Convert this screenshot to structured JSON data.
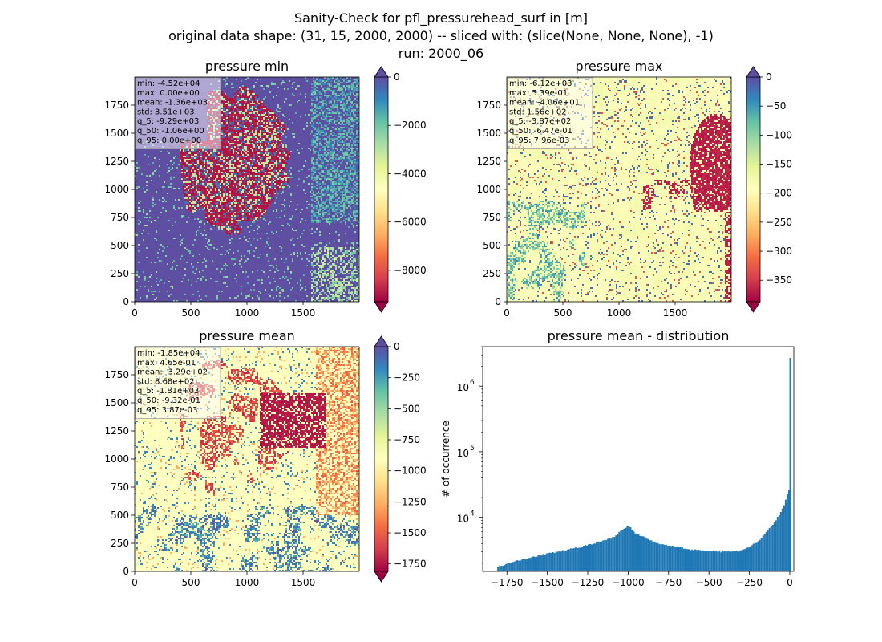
{
  "suptitle": {
    "line1": "Sanity-Check for pfl_pressurehead_surf in [m]",
    "line2": "original data shape: (31, 15, 2000, 2000) -- sliced with: (slice(None, None, None), -1)",
    "line3": "run: 2000_06"
  },
  "colors": {
    "spectral": [
      "#9e0142",
      "#d53e4f",
      "#f46d43",
      "#fdae61",
      "#fee08b",
      "#ffffbf",
      "#e6f598",
      "#abdda4",
      "#66c2a5",
      "#3288bd",
      "#5e4fa2"
    ],
    "histogram": "#1f77b4"
  },
  "chart_data": [
    {
      "type": "heatmap",
      "title": "pressure min",
      "colormap": "Spectral",
      "xlim": [
        0,
        2000
      ],
      "ylim": [
        0,
        2000
      ],
      "x_ticks": [
        "0",
        "500",
        "1000",
        "1500"
      ],
      "y_ticks": [
        "0",
        "250",
        "500",
        "750",
        "1000",
        "1250",
        "1500",
        "1750"
      ],
      "colorbar": {
        "range": [
          -9300,
          0
        ],
        "ticks": [
          0,
          -2000,
          -4000,
          -6000,
          -8000
        ],
        "tick_labels": [
          "0",
          "−2000",
          "−4000",
          "−6000",
          "−8000"
        ],
        "extend": "both"
      },
      "stats": [
        "min: -4.52e+04",
        "max: 0.00e+00",
        "mean: -1.36e+03",
        "std: 3.51e+03",
        "q_5: -9.29e+03",
        "q_50: -1.06e+00",
        "q_95: 0.00e+00"
      ]
    },
    {
      "type": "heatmap",
      "title": "pressure max",
      "colormap": "Spectral",
      "xlim": [
        0,
        2000
      ],
      "ylim": [
        0,
        2000
      ],
      "x_ticks": [
        "0",
        "500",
        "1000",
        "1500"
      ],
      "y_ticks": [
        "0",
        "250",
        "500",
        "750",
        "1000",
        "1250",
        "1500",
        "1750"
      ],
      "colorbar": {
        "range": [
          -387,
          0
        ],
        "ticks": [
          0,
          -50,
          -100,
          -150,
          -200,
          -250,
          -300,
          -350
        ],
        "tick_labels": [
          "0",
          "−50",
          "−100",
          "−150",
          "−200",
          "−250",
          "−300",
          "−350"
        ],
        "extend": "both"
      },
      "stats": [
        "min: -6.12e+03",
        "max: 5.39e-01",
        "mean: -4.06e+01",
        "std: 1.56e+02",
        "q_5: -3.87e+02",
        "q_50: -6.47e-01",
        "q_95: 7.96e-03"
      ]
    },
    {
      "type": "heatmap",
      "title": "pressure mean",
      "colormap": "Spectral",
      "xlim": [
        0,
        2000
      ],
      "ylim": [
        0,
        2000
      ],
      "x_ticks": [
        "0",
        "500",
        "1000",
        "1500"
      ],
      "y_ticks": [
        "0",
        "250",
        "500",
        "750",
        "1000",
        "1250",
        "1500",
        "1750"
      ],
      "colorbar": {
        "range": [
          -1810,
          0
        ],
        "ticks": [
          0,
          -250,
          -500,
          -750,
          -1000,
          -1250,
          -1500,
          -1750
        ],
        "tick_labels": [
          "0",
          "−250",
          "−500",
          "−750",
          "−1000",
          "−1250",
          "−1500",
          "−1750"
        ],
        "extend": "both"
      },
      "stats": [
        "min: -1.85e+04",
        "max: 4.65e-01",
        "mean: -3.29e+02",
        "std: 8.68e+02",
        "q_5: -1.81e+03",
        "q_50: -9.32e-01",
        "q_95: 3.87e-03"
      ]
    },
    {
      "type": "bar",
      "title": "pressure mean - distribution",
      "ylabel": "# of occurrence",
      "y_scale": "log",
      "xlim": [
        -1900,
        25
      ],
      "ylim": [
        1500,
        4000000
      ],
      "x_ticks": [
        -1750,
        -1500,
        -1250,
        -1000,
        -750,
        -500,
        -250,
        0
      ],
      "x_tick_labels": [
        "−1750",
        "−1500",
        "−1250",
        "−1000",
        "−750",
        "−500",
        "−250",
        "0"
      ],
      "y_ticks": [
        10000,
        100000,
        1000000
      ],
      "y_tick_labels": [
        "10",
        "10",
        "10"
      ],
      "y_tick_exponents": [
        "4",
        "5",
        "6"
      ],
      "bin_width": 10,
      "bin_range": [
        -1810,
        0
      ],
      "curve_points": [
        [
          -1810,
          1750
        ],
        [
          -1700,
          2150
        ],
        [
          -1500,
          2800
        ],
        [
          -1300,
          3500
        ],
        [
          -1100,
          4800
        ],
        [
          -1000,
          7500
        ],
        [
          -950,
          5600
        ],
        [
          -800,
          3900
        ],
        [
          -600,
          3200
        ],
        [
          -400,
          2950
        ],
        [
          -300,
          3100
        ],
        [
          -200,
          4200
        ],
        [
          -100,
          8000
        ],
        [
          -40,
          14000
        ],
        [
          -10,
          26000
        ]
      ],
      "spike": {
        "x": 0,
        "value": 2700000
      }
    }
  ]
}
